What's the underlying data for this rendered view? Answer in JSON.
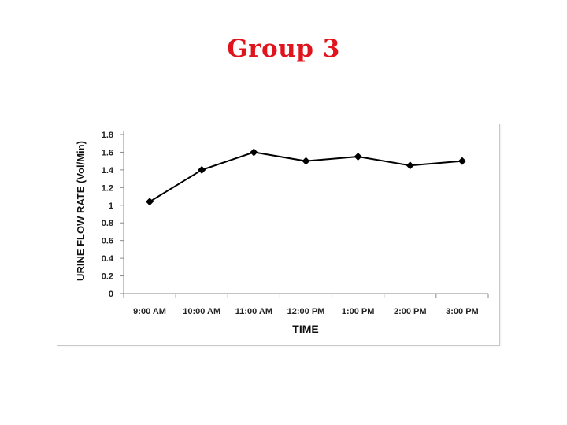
{
  "slide": {
    "title": "Group 3"
  },
  "chart_data": {
    "type": "line",
    "title": "",
    "xlabel": "TIME",
    "ylabel": "URINE FLOW RATE (Vol/Min)",
    "categories": [
      "9:00 AM",
      "10:00 AM",
      "11:00 AM",
      "12:00 PM",
      "1:00 PM",
      "2:00 PM",
      "3:00 PM"
    ],
    "series": [
      {
        "values": [
          1.04,
          1.4,
          1.6,
          1.5,
          1.55,
          1.45,
          1.5
        ],
        "color": "#000000",
        "marker": "diamond"
      }
    ],
    "ylim": [
      0,
      1.8
    ],
    "yticks": [
      "0",
      "0.2",
      "0.4",
      "0.6",
      "0.8",
      "1",
      "1.2",
      "1.4",
      "1.6",
      "1.8"
    ],
    "grid": false,
    "legend": "none"
  }
}
